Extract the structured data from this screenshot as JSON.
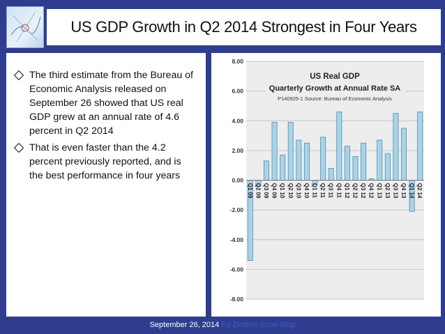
{
  "slide": {
    "title": "US GDP Growth in Q2 2014 Strongest in Four Years",
    "bullets": [
      "The third estimate from the Bureau of Economic Analysis released on September 26 showed that US real GDP grew at an annual rate of 4.6 percent in Q2 2014",
      "That is even faster than the 4.2 percent previously reported, and is the best performance in four years"
    ],
    "footer_date": "September 26, 2014",
    "footer_blog": "Ed Dolan's Econ Blog"
  },
  "colors": {
    "background": "#2f3d8f",
    "bar": "#a9d3e6",
    "bar_stroke": "#4a90b4",
    "plot_bg": "#ededed"
  },
  "chart_data": {
    "type": "bar",
    "title": "US  Real GDP",
    "subtitle": "Quarterly Growth at Annual Rate SA",
    "note": "P140925-1 Source: Bureau of Economic Analysis",
    "categories": [
      "Q1 09",
      "Q2 09",
      "Q3 09",
      "Q4 09",
      "Q1 10",
      "Q2 10",
      "Q3 10",
      "Q4 10",
      "Q1 11",
      "Q2 11",
      "Q3 11",
      "Q4 11",
      "Q1 12",
      "Q2 12",
      "Q3 12",
      "Q4 12",
      "Q1 13",
      "Q2 13",
      "Q3 13",
      "Q4 13",
      "Q1 14",
      "Q2 14"
    ],
    "values": [
      -5.4,
      -0.4,
      1.3,
      3.9,
      1.7,
      3.9,
      2.7,
      2.5,
      -0.3,
      2.9,
      0.8,
      4.6,
      2.3,
      1.6,
      2.5,
      0.1,
      2.7,
      1.8,
      4.5,
      3.5,
      -2.1,
      4.6
    ],
    "y_ticks": [
      "8.00",
      "6.00",
      "4.00",
      "2.00",
      "0.00",
      "-2.00",
      "-4.00",
      "-6.00",
      "-8.00"
    ],
    "ylim": [
      -8,
      8
    ],
    "grid": true
  }
}
